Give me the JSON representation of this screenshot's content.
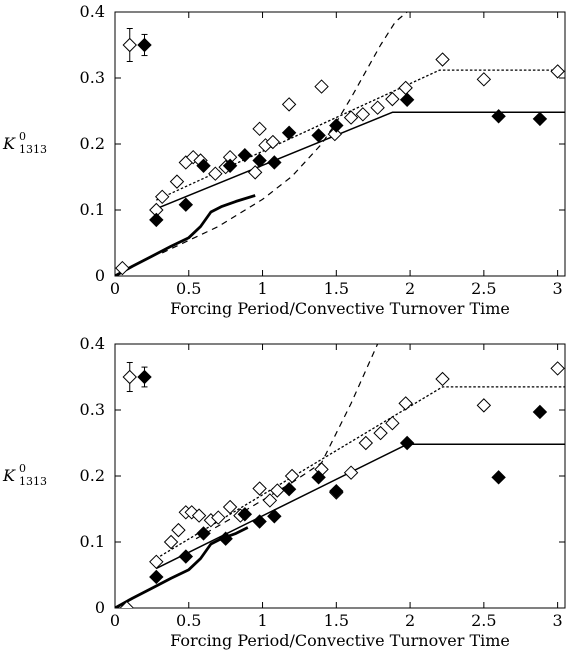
{
  "chart_data": [
    {
      "type": "scatter",
      "xlabel": "Forcing Period/Convective Turnover Time",
      "ylabel": "K",
      "ylabel_sup": "0",
      "ylabel_sub": "1313",
      "xlim": [
        0,
        3.05
      ],
      "ylim": [
        0,
        0.4
      ],
      "xticks": [
        0,
        0.5,
        1,
        1.5,
        2,
        2.5,
        3
      ],
      "xtick_labels": [
        "0",
        "0.5",
        "1",
        "1.5",
        "2",
        "2.5",
        "3"
      ],
      "yticks": [
        0,
        0.1,
        0.2,
        0.3,
        0.4
      ],
      "ytick_labels": [
        "0",
        "0.1",
        "0.2",
        "0.3",
        "0.4"
      ],
      "grid": false,
      "series": [
        {
          "marker": "open-diamond",
          "x": [
            0.05,
            0.28,
            0.32,
            0.42,
            0.48,
            0.53,
            0.58,
            0.68,
            0.75,
            0.78,
            0.95,
            0.98,
            1.02,
            1.07,
            1.18,
            1.4,
            1.49,
            1.6,
            1.68,
            1.78,
            1.88,
            1.97,
            2.22,
            2.5,
            3.0
          ],
          "y": [
            0.012,
            0.1,
            0.12,
            0.143,
            0.172,
            0.18,
            0.175,
            0.155,
            0.165,
            0.18,
            0.157,
            0.223,
            0.198,
            0.203,
            0.26,
            0.287,
            0.215,
            0.24,
            0.245,
            0.255,
            0.268,
            0.285,
            0.328,
            0.298,
            0.31
          ]
        },
        {
          "marker": "filled-diamond",
          "x": [
            0.28,
            0.48,
            0.6,
            0.78,
            0.88,
            0.98,
            1.08,
            1.18,
            1.38,
            1.5,
            1.98,
            2.6,
            2.88
          ],
          "y": [
            0.085,
            0.108,
            0.167,
            0.167,
            0.183,
            0.175,
            0.172,
            0.217,
            0.213,
            0.228,
            0.267,
            0.242,
            0.238
          ]
        }
      ],
      "lines": [
        {
          "style": "dotted",
          "x": [
            0.28,
            2.2,
            3.05
          ],
          "y": [
            0.115,
            0.312,
            0.312
          ]
        },
        {
          "style": "solid-thin",
          "x": [
            0.28,
            1.88,
            3.05
          ],
          "y": [
            0.102,
            0.248,
            0.248
          ]
        },
        {
          "style": "solid-thick",
          "x": [
            0.0,
            0.12,
            0.25,
            0.38,
            0.5,
            0.58,
            0.65,
            0.72,
            0.82,
            0.95
          ],
          "y": [
            0.0,
            0.015,
            0.03,
            0.045,
            0.058,
            0.075,
            0.097,
            0.105,
            0.113,
            0.122
          ]
        },
        {
          "style": "dashed",
          "x": [
            0.32,
            0.7,
            1.0,
            1.2,
            1.4,
            1.5,
            1.6,
            1.7,
            1.8,
            1.9,
            1.98
          ],
          "y": [
            0.035,
            0.075,
            0.116,
            0.151,
            0.2,
            0.233,
            0.27,
            0.31,
            0.35,
            0.385,
            0.4
          ]
        }
      ],
      "error_bar_key": [
        {
          "marker": "open-diamond",
          "x": 0.1,
          "y": 0.35,
          "err": 0.025
        },
        {
          "marker": "filled-diamond",
          "x": 0.2,
          "y": 0.35,
          "err": 0.016
        }
      ]
    },
    {
      "type": "scatter",
      "xlabel": "Forcing Period/Convective Turnover Time",
      "ylabel": "K",
      "ylabel_sup": "0",
      "ylabel_sub": "1313",
      "xlim": [
        0,
        3.05
      ],
      "ylim": [
        0,
        0.4
      ],
      "xticks": [
        0,
        0.5,
        1,
        1.5,
        2,
        2.5,
        3
      ],
      "xtick_labels": [
        "0",
        "0.5",
        "1",
        "1.5",
        "2",
        "2.5",
        "3"
      ],
      "yticks": [
        0,
        0.1,
        0.2,
        0.3,
        0.4
      ],
      "ytick_labels": [
        "0",
        "0.1",
        "0.2",
        "0.3",
        "0.4"
      ],
      "grid": false,
      "series": [
        {
          "marker": "open-diamond",
          "x": [
            0.08,
            0.28,
            0.38,
            0.43,
            0.48,
            0.52,
            0.57,
            0.65,
            0.7,
            0.78,
            0.85,
            0.98,
            1.05,
            1.1,
            1.2,
            1.4,
            1.5,
            1.6,
            1.7,
            1.8,
            1.88,
            1.97,
            2.22,
            2.5,
            3.0
          ],
          "y": [
            0.0,
            0.07,
            0.1,
            0.118,
            0.145,
            0.145,
            0.14,
            0.133,
            0.137,
            0.153,
            0.14,
            0.181,
            0.163,
            0.178,
            0.2,
            0.21,
            0.175,
            0.205,
            0.25,
            0.265,
            0.28,
            0.31,
            0.347,
            0.307,
            0.363
          ]
        },
        {
          "marker": "filled-diamond",
          "x": [
            0.28,
            0.48,
            0.6,
            0.75,
            0.88,
            0.98,
            1.08,
            1.18,
            1.38,
            1.5,
            1.98,
            2.6,
            2.88
          ],
          "y": [
            0.047,
            0.078,
            0.113,
            0.105,
            0.142,
            0.131,
            0.139,
            0.18,
            0.198,
            0.177,
            0.25,
            0.198,
            0.297
          ]
        }
      ],
      "lines": [
        {
          "style": "dotted",
          "x": [
            0.28,
            2.22,
            3.05
          ],
          "y": [
            0.075,
            0.335,
            0.335
          ]
        },
        {
          "style": "solid-thin",
          "x": [
            0.28,
            1.98,
            3.05
          ],
          "y": [
            0.06,
            0.248,
            0.248
          ]
        },
        {
          "style": "solid-thick",
          "x": [
            0.0,
            0.12,
            0.25,
            0.38,
            0.5,
            0.58,
            0.65,
            0.72,
            0.82,
            0.9
          ],
          "y": [
            0.0,
            0.015,
            0.03,
            0.045,
            0.058,
            0.075,
            0.097,
            0.105,
            0.113,
            0.122
          ]
        },
        {
          "style": "dashed",
          "x": [
            0.55,
            0.9,
            1.2,
            1.4,
            1.5,
            1.6,
            1.7,
            1.78
          ],
          "y": [
            0.105,
            0.15,
            0.19,
            0.22,
            0.265,
            0.31,
            0.36,
            0.4
          ]
        }
      ],
      "error_bar_key": [
        {
          "marker": "open-diamond",
          "x": 0.1,
          "y": 0.35,
          "err": 0.022
        },
        {
          "marker": "filled-diamond",
          "x": 0.2,
          "y": 0.35,
          "err": 0.015
        }
      ]
    }
  ]
}
